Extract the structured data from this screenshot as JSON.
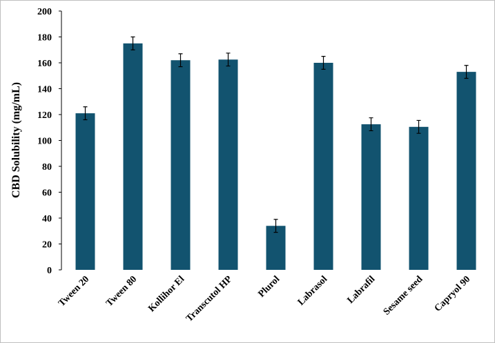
{
  "chart_data": {
    "type": "bar",
    "y_label": "CBD Solubility (mg/mL)",
    "categories": [
      "Tween 20",
      "Tween 80",
      "Kollihor El",
      "Transcutol HP",
      "Plurol",
      "Labrasol",
      "Labrafil",
      "Sesame seed",
      "Capryol 90"
    ],
    "values": [
      121,
      175,
      162,
      162.5,
      34,
      160,
      112.5,
      110.5,
      153
    ],
    "errors": [
      5,
      5,
      5,
      5,
      5,
      5,
      5,
      5,
      5
    ],
    "color": "#12536f",
    "ylim": [
      0,
      200
    ],
    "yticks": [
      0,
      20,
      40,
      60,
      80,
      100,
      120,
      140,
      160,
      180,
      200
    ]
  }
}
